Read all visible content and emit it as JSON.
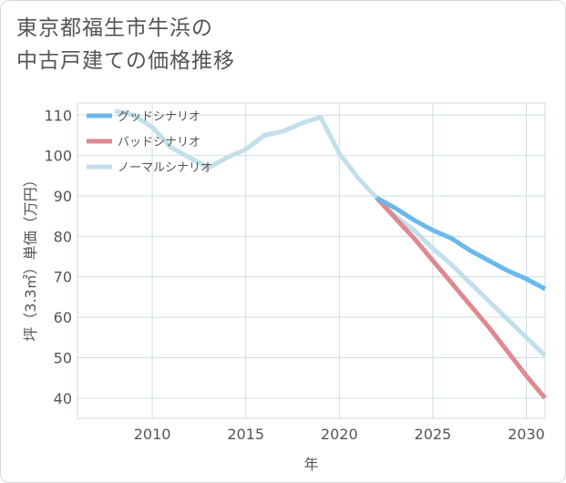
{
  "title": {
    "line1": "東京都福生市牛浜の",
    "line2": "中古戸建ての価格推移"
  },
  "chart_data": {
    "type": "line",
    "title": "東京都福生市牛浜の中古戸建ての価格推移",
    "xlabel": "年",
    "ylabel": "坪（3.3㎡）単価（万円）",
    "xlim": [
      2006,
      2031
    ],
    "ylim": [
      35,
      113
    ],
    "xticks": [
      2010,
      2015,
      2020,
      2025,
      2030
    ],
    "yticks": [
      40,
      50,
      60,
      70,
      80,
      90,
      100,
      110
    ],
    "grid": true,
    "legend_position": "top-left",
    "series": [
      {
        "name": "グッドシナリオ",
        "color": "#6bb8ec",
        "x": [
          2022,
          2023,
          2024,
          2025,
          2026,
          2027,
          2028,
          2029,
          2030,
          2031
        ],
        "y": [
          89.5,
          87,
          84,
          81.5,
          79.5,
          76.5,
          74,
          71.5,
          69.5,
          67
        ]
      },
      {
        "name": "バッドシナリオ",
        "color": "#dc8a90",
        "x": [
          2022,
          2023,
          2024,
          2025,
          2026,
          2027,
          2028,
          2029,
          2030,
          2031
        ],
        "y": [
          89.5,
          84.5,
          79.5,
          74,
          68.5,
          63,
          57.5,
          51.5,
          45.5,
          40
        ]
      },
      {
        "name": "ノーマルシナリオ",
        "color": "#c2dfea",
        "x": [
          2008,
          2009,
          2010,
          2011,
          2012,
          2013,
          2014,
          2015,
          2016,
          2017,
          2018,
          2019,
          2020,
          2021,
          2022,
          2023,
          2024,
          2025,
          2026,
          2027,
          2028,
          2029,
          2030,
          2031
        ],
        "y": [
          111,
          110,
          107,
          102,
          99.5,
          97,
          99.5,
          101.5,
          105,
          106,
          108,
          109.5,
          100.5,
          94.5,
          89.5,
          85,
          81.5,
          77,
          73,
          68.5,
          64,
          59.5,
          55,
          50.5
        ]
      }
    ]
  }
}
